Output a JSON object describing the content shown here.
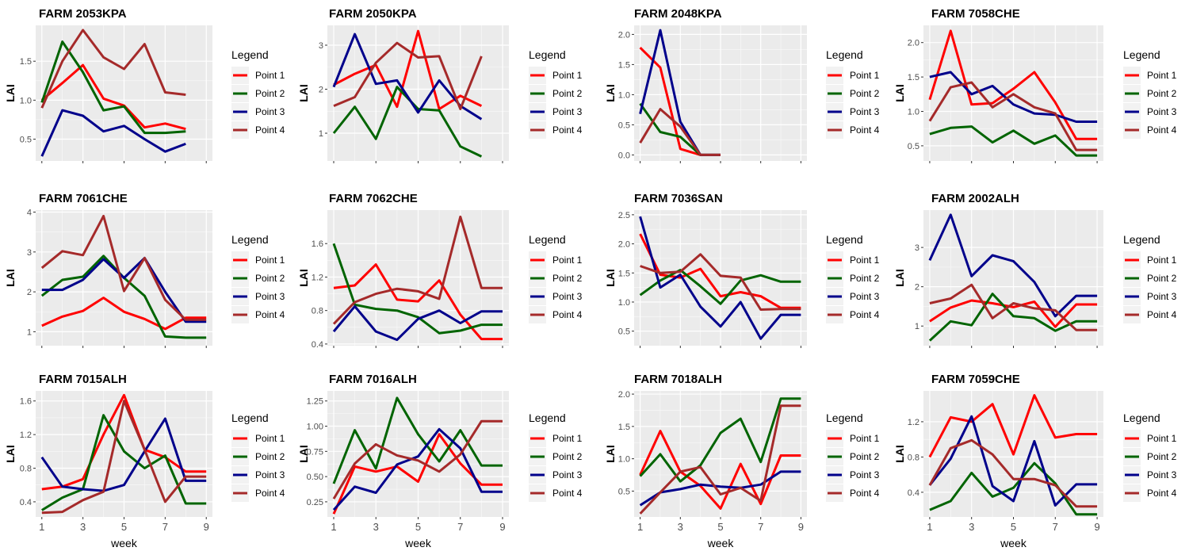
{
  "chart_data": {
    "type": "line",
    "legend_title": "Legend",
    "legend_placement": "right",
    "xlabel": "week",
    "ylabel": "LAI",
    "x": [
      1,
      2,
      3,
      4,
      5,
      6,
      7,
      8,
      9
    ],
    "x_ticks": [
      1,
      3,
      5,
      7,
      9
    ],
    "series_names": [
      "Point 1",
      "Point 2",
      "Point 3",
      "Point 4"
    ],
    "series_colors": [
      "#ff0000",
      "#006400",
      "#00008b",
      "#a52a2a"
    ],
    "panel_background": "#ebebeb",
    "grid": true,
    "panels": [
      {
        "title": "FARM 2053KPA",
        "yticks": [
          0.5,
          1.0,
          1.5
        ],
        "ytick_labels": [
          "0.5",
          "1.0",
          "1.5"
        ],
        "ylim": [
          0.22,
          1.96
        ],
        "series": [
          [
            1.0,
            1.22,
            1.45,
            1.02,
            0.93,
            0.65,
            0.7,
            0.63,
            null
          ],
          [
            0.97,
            1.75,
            1.36,
            0.87,
            0.92,
            0.58,
            0.58,
            0.6,
            null
          ],
          [
            0.28,
            0.87,
            0.8,
            0.6,
            0.67,
            0.5,
            0.34,
            0.44,
            null
          ],
          [
            0.9,
            1.5,
            1.9,
            1.55,
            1.4,
            1.72,
            1.1,
            1.07,
            null
          ]
        ]
      },
      {
        "title": "FARM 2050KPA",
        "yticks": [
          1,
          2,
          3
        ],
        "ytick_labels": [
          "1",
          "2",
          "3"
        ],
        "ylim": [
          0.37,
          3.45
        ],
        "series": [
          [
            2.1,
            2.35,
            2.55,
            1.6,
            3.32,
            1.55,
            1.85,
            1.62,
            null
          ],
          [
            1.0,
            1.6,
            0.87,
            2.05,
            1.55,
            1.52,
            0.7,
            0.47,
            null
          ],
          [
            2.05,
            3.25,
            2.12,
            2.2,
            1.47,
            2.2,
            1.62,
            1.32,
            null
          ],
          [
            1.62,
            1.82,
            2.6,
            3.05,
            2.72,
            2.75,
            1.55,
            2.75,
            null
          ]
        ]
      },
      {
        "title": "FARM 2048KPA",
        "yticks": [
          0.0,
          0.5,
          1.0,
          1.5,
          2.0
        ],
        "ytick_labels": [
          "0.0",
          "0.5",
          "1.0",
          "1.5",
          "2.0"
        ],
        "ylim": [
          -0.1,
          2.15
        ],
        "series": [
          [
            1.78,
            1.45,
            0.1,
            0.0,
            0.0,
            null,
            null,
            null,
            null
          ],
          [
            0.85,
            0.38,
            0.3,
            0.0,
            0.0,
            null,
            null,
            null,
            null
          ],
          [
            0.68,
            2.07,
            0.55,
            0.0,
            0.0,
            null,
            null,
            null,
            null
          ],
          [
            0.2,
            0.76,
            0.47,
            0.0,
            0.0,
            null,
            null,
            null,
            null
          ]
        ]
      },
      {
        "title": "FARM 7058CHE",
        "yticks": [
          0.5,
          1.0,
          1.5,
          2.0
        ],
        "ytick_labels": [
          "0.5",
          "1.0",
          "1.5",
          "2.0"
        ],
        "ylim": [
          0.28,
          2.25
        ],
        "series": [
          [
            1.17,
            2.17,
            1.1,
            1.12,
            1.33,
            1.57,
            1.13,
            0.6,
            0.6
          ],
          [
            0.67,
            0.76,
            0.78,
            0.55,
            0.72,
            0.53,
            0.65,
            0.36,
            0.36
          ],
          [
            1.5,
            1.57,
            1.25,
            1.37,
            1.1,
            0.97,
            0.95,
            0.85,
            0.85
          ],
          [
            0.86,
            1.35,
            1.42,
            1.06,
            1.25,
            1.06,
            0.97,
            0.44,
            0.44
          ]
        ]
      },
      {
        "title": "FARM 7061CHE",
        "yticks": [
          1,
          2,
          3,
          4
        ],
        "ytick_labels": [
          "1",
          "2",
          "3",
          "4"
        ],
        "ylim": [
          0.65,
          4.05
        ],
        "series": [
          [
            1.15,
            1.38,
            1.52,
            1.85,
            1.5,
            1.32,
            1.07,
            1.35,
            1.35
          ],
          [
            1.9,
            2.3,
            2.38,
            2.9,
            2.35,
            1.9,
            0.88,
            0.85,
            0.85
          ],
          [
            2.05,
            2.05,
            2.3,
            2.82,
            2.35,
            2.85,
            2.0,
            1.25,
            1.25
          ],
          [
            2.6,
            3.02,
            2.92,
            3.9,
            2.02,
            2.85,
            1.8,
            1.3,
            1.3
          ]
        ]
      },
      {
        "title": "FARM 7062CHE",
        "yticks": [
          0.4,
          0.8,
          1.2,
          1.6
        ],
        "ytick_labels": [
          "0.4",
          "0.8",
          "1.2",
          "1.6"
        ],
        "ylim": [
          0.38,
          2.0
        ],
        "series": [
          [
            1.07,
            1.1,
            1.35,
            0.93,
            0.91,
            1.16,
            0.75,
            0.46,
            0.46
          ],
          [
            1.6,
            0.87,
            0.82,
            0.8,
            0.72,
            0.53,
            0.56,
            0.63,
            0.63
          ],
          [
            0.55,
            0.85,
            0.55,
            0.45,
            0.7,
            0.8,
            0.65,
            0.79,
            0.79
          ],
          [
            0.64,
            0.9,
            1.0,
            1.06,
            1.03,
            0.94,
            1.92,
            1.07,
            1.07
          ]
        ]
      },
      {
        "title": "FARM 7036SAN",
        "yticks": [
          0.5,
          1.0,
          1.5,
          2.0,
          2.5
        ],
        "ytick_labels": [
          "0.5",
          "1.0",
          "1.5",
          "2.0",
          "2.5"
        ],
        "ylim": [
          0.25,
          2.58
        ],
        "series": [
          [
            2.17,
            1.47,
            1.42,
            1.57,
            1.1,
            1.17,
            1.1,
            0.9,
            0.9
          ],
          [
            1.12,
            1.37,
            1.55,
            1.27,
            0.97,
            1.37,
            1.46,
            1.35,
            1.35
          ],
          [
            2.47,
            1.25,
            1.47,
            0.92,
            0.58,
            1.0,
            0.37,
            0.78,
            0.78
          ],
          [
            1.62,
            1.5,
            1.52,
            1.82,
            1.45,
            1.42,
            0.87,
            0.88,
            0.88
          ]
        ]
      },
      {
        "title": "FARM 2002ALH",
        "yticks": [
          1,
          2,
          3
        ],
        "ytick_labels": [
          "1",
          "2",
          "3"
        ],
        "ylim": [
          0.5,
          3.95
        ],
        "series": [
          [
            1.12,
            1.47,
            1.65,
            1.58,
            1.48,
            1.62,
            0.98,
            1.55,
            1.55
          ],
          [
            0.63,
            1.12,
            1.02,
            1.82,
            1.25,
            1.2,
            0.88,
            1.12,
            1.12
          ],
          [
            2.67,
            3.83,
            2.27,
            2.8,
            2.65,
            2.12,
            1.25,
            1.77,
            1.77
          ],
          [
            1.58,
            1.7,
            2.05,
            1.2,
            1.58,
            1.45,
            1.4,
            0.9,
            0.9
          ]
        ]
      },
      {
        "title": "FARM 7015ALH",
        "yticks": [
          0.4,
          0.8,
          1.2,
          1.6
        ],
        "ytick_labels": [
          "0.4",
          "0.8",
          "1.2",
          "1.6"
        ],
        "ylim": [
          0.22,
          1.72
        ],
        "series": [
          [
            0.55,
            0.58,
            0.67,
            1.2,
            1.67,
            1.02,
            0.93,
            0.76,
            0.76
          ],
          [
            0.3,
            0.45,
            0.55,
            1.43,
            1.0,
            0.8,
            0.95,
            0.38,
            0.38
          ],
          [
            0.93,
            0.58,
            0.55,
            0.53,
            0.6,
            1.0,
            1.39,
            0.65,
            0.65
          ],
          [
            0.27,
            0.28,
            0.42,
            0.52,
            1.6,
            1.02,
            0.4,
            0.7,
            0.7
          ]
        ]
      },
      {
        "title": "FARM 7016ALH",
        "yticks": [
          0.25,
          0.5,
          0.75,
          1.0,
          1.25
        ],
        "ytick_labels": [
          "0.25",
          "0.50",
          "0.75",
          "1.00",
          "1.25"
        ],
        "ylim": [
          0.1,
          1.35
        ],
        "series": [
          [
            0.13,
            0.6,
            0.55,
            0.6,
            0.45,
            0.92,
            0.63,
            0.42,
            0.42
          ],
          [
            0.43,
            0.96,
            0.58,
            1.28,
            0.92,
            0.65,
            0.96,
            0.61,
            0.61
          ],
          [
            0.17,
            0.4,
            0.34,
            0.62,
            0.7,
            0.97,
            0.78,
            0.35,
            0.35
          ],
          [
            0.28,
            0.63,
            0.82,
            0.71,
            0.66,
            0.55,
            0.72,
            1.05,
            1.05
          ]
        ]
      },
      {
        "title": "FARM 7018ALH",
        "yticks": [
          0.5,
          1.0,
          1.5,
          2.0
        ],
        "ytick_labels": [
          "0.5",
          "1.0",
          "1.5",
          "2.0"
        ],
        "ylim": [
          0.1,
          2.05
        ],
        "series": [
          [
            0.75,
            1.43,
            0.8,
            0.58,
            0.23,
            0.92,
            0.3,
            1.05,
            1.05
          ],
          [
            0.73,
            1.07,
            0.65,
            0.9,
            1.4,
            1.62,
            0.95,
            1.93,
            1.93
          ],
          [
            0.28,
            0.48,
            0.53,
            0.6,
            0.57,
            0.55,
            0.6,
            0.8,
            0.8
          ],
          [
            0.15,
            0.48,
            0.8,
            0.87,
            0.45,
            0.55,
            0.35,
            1.82,
            1.82
          ]
        ]
      },
      {
        "title": "FARM 7059CHE",
        "yticks": [
          0.4,
          0.8,
          1.2
        ],
        "ytick_labels": [
          "0.4",
          "0.8",
          "1.2"
        ],
        "ylim": [
          0.12,
          1.55
        ],
        "series": [
          [
            0.8,
            1.25,
            1.2,
            1.4,
            0.83,
            1.5,
            1.02,
            1.06,
            1.06
          ],
          [
            0.2,
            0.3,
            0.62,
            0.35,
            0.45,
            0.73,
            0.5,
            0.15,
            0.15
          ],
          [
            0.48,
            0.78,
            1.26,
            0.47,
            0.3,
            0.98,
            0.25,
            0.49,
            0.49
          ],
          [
            0.48,
            0.9,
            0.99,
            0.83,
            0.55,
            0.55,
            0.48,
            0.24,
            0.24
          ]
        ]
      }
    ]
  }
}
